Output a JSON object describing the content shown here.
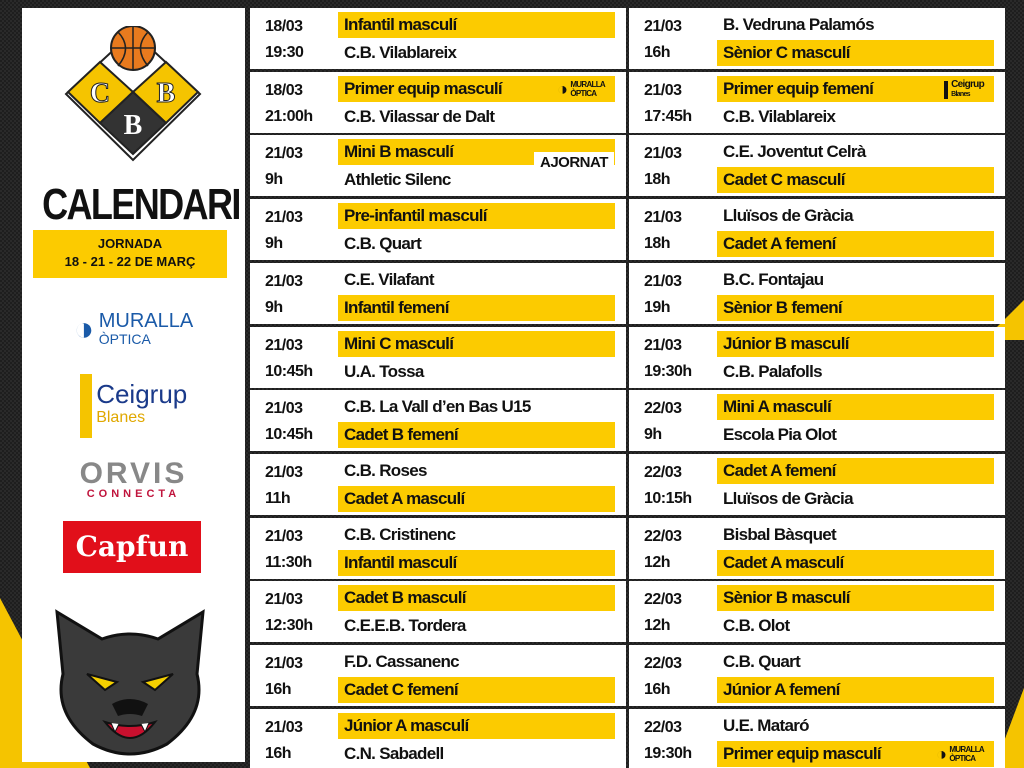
{
  "sidebar": {
    "logo_text": "CBB",
    "title": "CALENDARI",
    "jornada_label": "JORNADA",
    "jornada_dates": "18 - 21 - 22 DE MARÇ",
    "sponsors": [
      {
        "name": "MURALLA",
        "sub": "ÒPTICA"
      },
      {
        "name": "Ceigrup",
        "sub": "Blanes"
      },
      {
        "name": "ORVIS",
        "sub": "CONNECTA"
      },
      {
        "name": "Capfun"
      }
    ]
  },
  "colors": {
    "yellow": "#fccb00",
    "dark": "#1e1e1e",
    "orange": "#e87a1e"
  },
  "columns": [
    [
      {
        "date": "18/03",
        "time": "19:30",
        "top": "Infantil masculí",
        "bottom": "C.B. Vilablareix",
        "cat": 0
      },
      {
        "date": "18/03",
        "time": "21:00h",
        "top": "Primer equip masculí",
        "bottom": "C.B. Vilassar de Dalt",
        "cat": 0,
        "sponsor": "muralla"
      },
      {
        "date": "21/03",
        "time": "9h",
        "top": "Mini B masculí",
        "bottom": "Athletic Silenc",
        "cat": 0,
        "status": "AJORNAT"
      },
      {
        "date": "21/03",
        "time": "9h",
        "top": "Pre-infantil masculí",
        "bottom": "C.B. Quart",
        "cat": 0
      },
      {
        "date": "21/03",
        "time": "9h",
        "top": "C.E. Vilafant",
        "bottom": "Infantil femení",
        "cat": 1
      },
      {
        "date": "21/03",
        "time": "10:45h",
        "top": "Mini C masculí",
        "bottom": "U.A. Tossa",
        "cat": 0
      },
      {
        "date": "21/03",
        "time": "10:45h",
        "top": "C.B. La Vall d’en Bas U15",
        "bottom": "Cadet B femení",
        "cat": 1
      },
      {
        "date": "21/03",
        "time": "11h",
        "top": "C.B. Roses",
        "bottom": "Cadet A masculí",
        "cat": 1
      },
      {
        "date": "21/03",
        "time": "11:30h",
        "top": "C.B. Cristinenc",
        "bottom": "Infantil masculí",
        "cat": 1
      },
      {
        "date": "21/03",
        "time": "12:30h",
        "top": "Cadet B masculí",
        "bottom": "C.E.E.B. Tordera",
        "cat": 0
      },
      {
        "date": "21/03",
        "time": "16h",
        "top": "F.D. Cassanenc",
        "bottom": "Cadet C femení",
        "cat": 1
      },
      {
        "date": "21/03",
        "time": "16h",
        "top": "Júnior A masculí",
        "bottom": "C.N. Sabadell",
        "cat": 0
      }
    ],
    [
      {
        "date": "21/03",
        "time": "16h",
        "top": "B. Vedruna Palamós",
        "bottom": "Sènior C masculí",
        "cat": 1
      },
      {
        "date": "21/03",
        "time": "17:45h",
        "top": "Primer equip femení",
        "bottom": "C.B. Vilablareix",
        "cat": 0,
        "sponsor": "ceigrup"
      },
      {
        "date": "21/03",
        "time": "18h",
        "top": "C.E. Joventut Celrà",
        "bottom": "Cadet C masculí",
        "cat": 1
      },
      {
        "date": "21/03",
        "time": "18h",
        "top": "Lluïsos de Gràcia",
        "bottom": "Cadet A femení",
        "cat": 1
      },
      {
        "date": "21/03",
        "time": "19h",
        "top": "B.C. Fontajau",
        "bottom": "Sènior B femení",
        "cat": 1
      },
      {
        "date": "21/03",
        "time": "19:30h",
        "top": "Júnior B masculí",
        "bottom": "C.B. Palafolls",
        "cat": 0
      },
      {
        "date": "22/03",
        "time": "9h",
        "top": "Mini A masculí",
        "bottom": "Escola Pia Olot",
        "cat": 0
      },
      {
        "date": "22/03",
        "time": "10:15h",
        "top": "Cadet A femení",
        "bottom": "Lluïsos de Gràcia",
        "cat": 0
      },
      {
        "date": "22/03",
        "time": "12h",
        "top": "Bisbal Bàsquet",
        "bottom": "Cadet A masculí",
        "cat": 1
      },
      {
        "date": "22/03",
        "time": "12h",
        "top": "Sènior B masculí",
        "bottom": "C.B. Olot",
        "cat": 0
      },
      {
        "date": "22/03",
        "time": "16h",
        "top": "C.B. Quart",
        "bottom": "Júnior A femení",
        "cat": 1
      },
      {
        "date": "22/03",
        "time": "19:30h",
        "top": "U.E. Mataró",
        "bottom": "Primer equip masculí",
        "cat": 1,
        "sponsor": "muralla"
      }
    ]
  ]
}
